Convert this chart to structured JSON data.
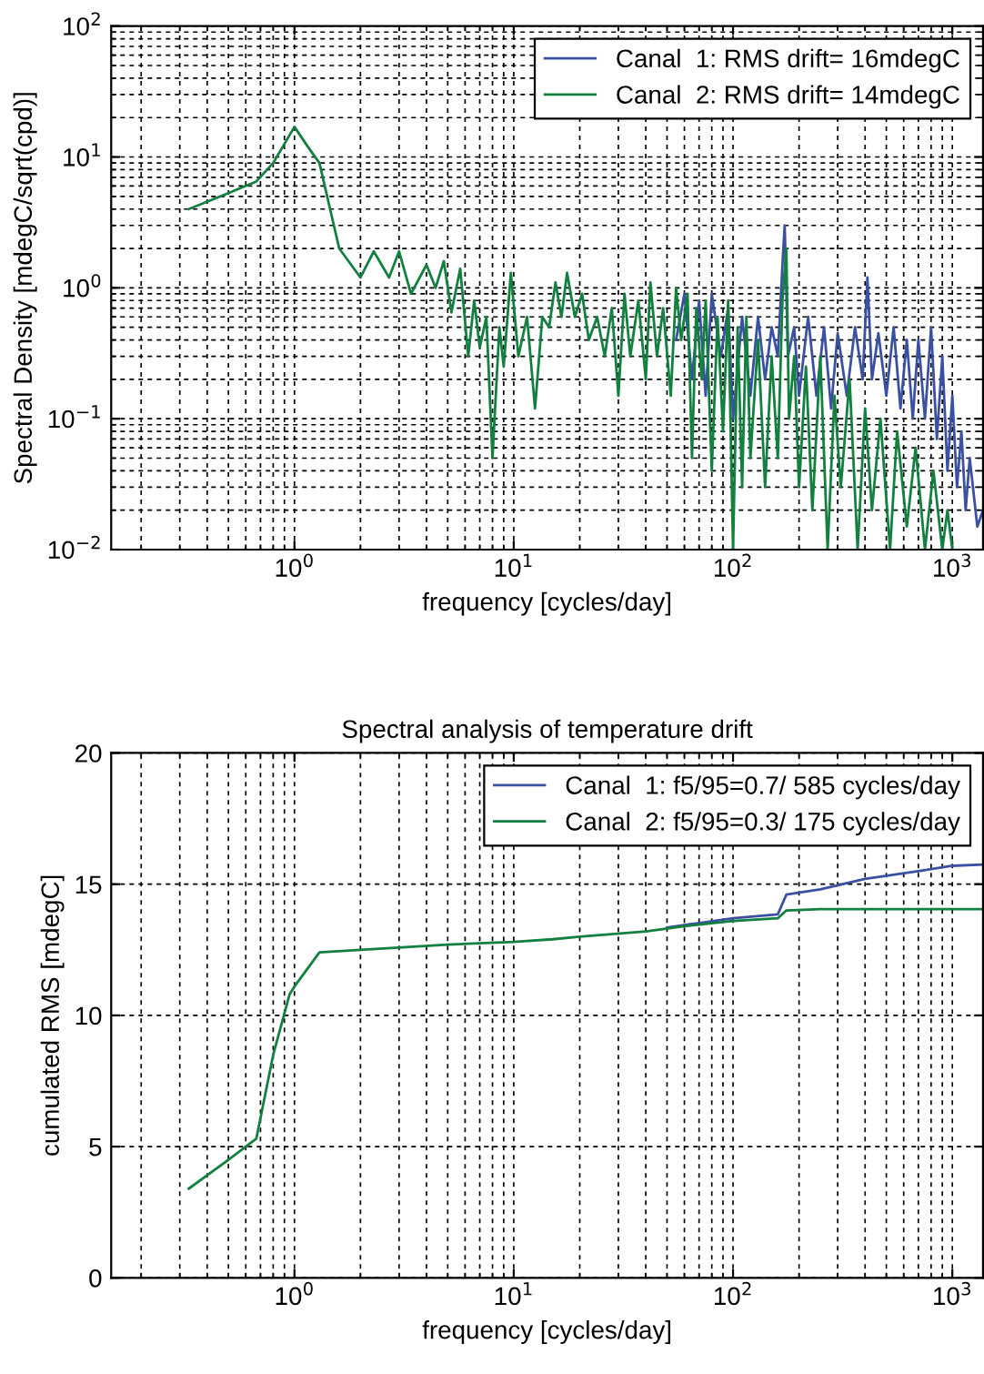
{
  "chart_data": [
    {
      "type": "line",
      "xlabel": "frequency [cycles/day]",
      "ylabel": "Spectral Density [mdegC/sqrt(cpd)]",
      "log": "xy",
      "grid": true,
      "legend": "top right",
      "line_style": "solid",
      "xlim": [
        0.146,
        1380
      ],
      "xticks": [
        {
          "value": 1,
          "label": "10$^{0}$"
        },
        {
          "value": 10,
          "label": "10$^{1}$"
        },
        {
          "value": 100,
          "label": "10$^{2}$"
        },
        {
          "value": 1000,
          "label": "10$^{3}$"
        }
      ],
      "ylim": [
        0.01,
        100
      ],
      "yticks": [
        {
          "value": 0.01,
          "label": "10$^{−2}$"
        },
        {
          "value": 0.1,
          "label": "10$^{−1}$"
        },
        {
          "value": 1,
          "label": "10$^{0}$"
        },
        {
          "value": 10,
          "label": "10$^{1}$"
        },
        {
          "value": 100,
          "label": "10$^{2}$"
        }
      ],
      "series": [
        {
          "name": "Canal  1: RMS drift= 16mdegC",
          "color": "#3a50a0",
          "x": [
            55,
            60,
            65,
            70,
            75,
            80,
            88,
            95,
            100,
            110,
            120,
            130,
            140,
            150,
            160,
            168,
            172,
            178,
            190,
            200,
            220,
            240,
            260,
            280,
            300,
            330,
            360,
            390,
            410,
            430,
            460,
            500,
            540,
            580,
            620,
            660,
            700,
            750,
            800,
            850,
            900,
            950,
            1000,
            1050,
            1100,
            1150,
            1200,
            1300,
            1380
          ],
          "values": [
            0.4,
            0.9,
            0.2,
            0.8,
            0.15,
            0.9,
            0.3,
            0.7,
            0.1,
            0.6,
            0.15,
            0.6,
            0.2,
            0.5,
            0.3,
            1.5,
            3.0,
            0.3,
            0.5,
            0.15,
            0.6,
            0.15,
            0.5,
            0.12,
            0.45,
            0.15,
            0.5,
            0.2,
            1.2,
            0.2,
            0.45,
            0.15,
            0.5,
            0.12,
            0.4,
            0.1,
            0.4,
            0.1,
            0.5,
            0.07,
            0.3,
            0.04,
            0.15,
            0.03,
            0.08,
            0.02,
            0.05,
            0.015,
            0.02
          ]
        },
        {
          "name": "Canal  2: RMS drift= 14mdegC",
          "color": "#12803e",
          "x": [
            0.33,
            0.5,
            0.67,
            0.8,
            1.0,
            1.15,
            1.3,
            1.6,
            2.0,
            2.3,
            2.7,
            3.0,
            3.4,
            4.0,
            4.4,
            4.8,
            5.2,
            5.7,
            6.2,
            6.6,
            7.0,
            7.5,
            8.0,
            8.6,
            9.0,
            9.7,
            10.5,
            11.5,
            12.5,
            13.5,
            14.5,
            15.5,
            16.5,
            17.5,
            19,
            20.5,
            22,
            24,
            26,
            28,
            30,
            32,
            34,
            37,
            40,
            42,
            45,
            48,
            52,
            55,
            58,
            62,
            65,
            68,
            72,
            75,
            80,
            85,
            90,
            95,
            100,
            105,
            110,
            115,
            120,
            130,
            140,
            150,
            160,
            168,
            175,
            180,
            190,
            200,
            215,
            230,
            250,
            270,
            290,
            310,
            340,
            370,
            400,
            430,
            470,
            520,
            560,
            620,
            680,
            750,
            820,
            900,
            950,
            1000
          ],
          "values": [
            4.0,
            5.3,
            6.5,
            9,
            17,
            12,
            9,
            2.0,
            1.2,
            1.9,
            1.2,
            1.9,
            0.9,
            1.5,
            1.0,
            1.6,
            0.65,
            1.4,
            0.3,
            0.8,
            0.35,
            0.6,
            0.05,
            0.5,
            0.25,
            1.3,
            0.3,
            0.6,
            0.12,
            0.6,
            0.5,
            1.1,
            0.6,
            1.3,
            0.6,
            0.9,
            0.4,
            0.6,
            0.3,
            0.7,
            0.15,
            0.9,
            0.3,
            0.8,
            0.2,
            1.1,
            0.3,
            0.7,
            0.15,
            1.0,
            0.4,
            0.9,
            0.05,
            0.7,
            0.2,
            0.8,
            0.04,
            0.6,
            0.08,
            0.8,
            0.01,
            0.5,
            0.03,
            0.6,
            0.05,
            0.4,
            0.03,
            0.3,
            0.05,
            0.8,
            2.0,
            0.1,
            0.3,
            0.03,
            0.25,
            0.02,
            0.3,
            0.01,
            0.15,
            0.03,
            0.2,
            0.01,
            0.12,
            0.02,
            0.1,
            0.01,
            0.08,
            0.015,
            0.06,
            0.01,
            0.04,
            0.01,
            0.02,
            0.01
          ]
        }
      ]
    },
    {
      "type": "line",
      "title": "Spectral analysis of temperature drift",
      "xlabel": "frequency [cycles/day]",
      "ylabel": "cumulated RMS [mdegC]",
      "log": "x",
      "grid": true,
      "legend": "top right",
      "line_style": "solid",
      "xlim": [
        0.146,
        1380
      ],
      "xticks": [
        {
          "value": 1,
          "label": "10$^{0}$"
        },
        {
          "value": 10,
          "label": "10$^{1}$"
        },
        {
          "value": 100,
          "label": "10$^{2}$"
        },
        {
          "value": 1000,
          "label": "10$^{3}$"
        }
      ],
      "ylim": [
        0,
        20
      ],
      "yticks": [
        0,
        5,
        10,
        15,
        20
      ],
      "series": [
        {
          "name": "Canal  1: f5/95=0.7/ 585 cycles/day",
          "color": "#3a50a0",
          "x": [
            50,
            100,
            160,
            175,
            250,
            400,
            700,
            1000,
            1380
          ],
          "values": [
            13.35,
            13.7,
            13.85,
            14.6,
            14.8,
            15.2,
            15.5,
            15.7,
            15.75
          ]
        },
        {
          "name": "Canal  2: f5/95=0.3/ 175 cycles/day",
          "color": "#12803e",
          "x": [
            0.33,
            0.5,
            0.6,
            0.67,
            0.8,
            0.95,
            1.0,
            1.3,
            2,
            5,
            10,
            15,
            20,
            40,
            60,
            100,
            160,
            175,
            250,
            1380
          ],
          "values": [
            3.4,
            4.5,
            5.0,
            5.3,
            8.5,
            10.8,
            11.1,
            12.4,
            12.5,
            12.7,
            12.8,
            12.9,
            13.0,
            13.2,
            13.4,
            13.6,
            13.7,
            14.0,
            14.05,
            14.05
          ]
        }
      ]
    }
  ]
}
